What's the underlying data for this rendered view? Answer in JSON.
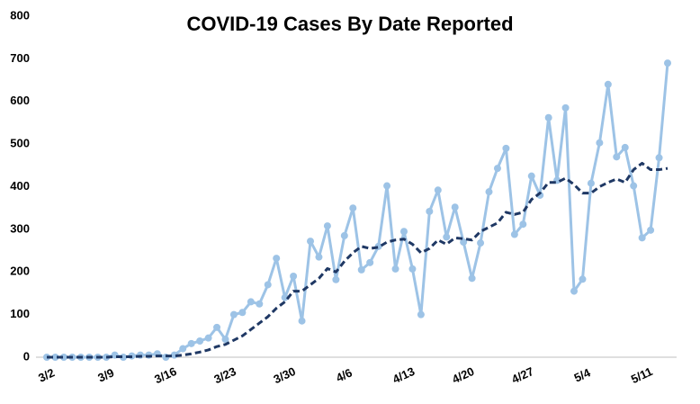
{
  "chart_data": {
    "type": "line",
    "title": "COVID-19 Cases By Date Reported",
    "categories": [
      "3/2",
      null,
      null,
      null,
      null,
      null,
      null,
      "3/9",
      null,
      null,
      null,
      null,
      null,
      null,
      "3/16",
      null,
      null,
      null,
      null,
      null,
      null,
      "3/23",
      null,
      null,
      null,
      null,
      null,
      null,
      "3/30",
      null,
      null,
      null,
      null,
      null,
      null,
      "4/6",
      null,
      null,
      null,
      null,
      null,
      null,
      "4/13",
      null,
      null,
      null,
      null,
      null,
      null,
      "4/20",
      null,
      null,
      null,
      null,
      null,
      null,
      "4/27",
      null,
      null,
      null,
      null,
      null,
      null,
      "5/4",
      null,
      null,
      null,
      null,
      null,
      null,
      "5/11",
      null,
      null,
      null
    ],
    "series": [
      {
        "color": "#9dc3e6",
        "markers": true,
        "dashed": false,
        "values": [
          0,
          0,
          0,
          0,
          0,
          0,
          0,
          0,
          5,
          0,
          3,
          5,
          5,
          8,
          0,
          5,
          20,
          32,
          38,
          45,
          70,
          42,
          100,
          105,
          130,
          125,
          170,
          232,
          140,
          190,
          85,
          272,
          235,
          308,
          182,
          285,
          350,
          205,
          222,
          260,
          402,
          207,
          295,
          207,
          100,
          342,
          392,
          282,
          352,
          270,
          185,
          268,
          388,
          443,
          490,
          288,
          312,
          425,
          380,
          562,
          415,
          585,
          155,
          183,
          408,
          503,
          640,
          470,
          492,
          402,
          280,
          298,
          468,
          690
        ]
      },
      {
        "color": "#1f3864",
        "markers": false,
        "dashed": true,
        "values": [
          0,
          0,
          0,
          0,
          0,
          0,
          0,
          0,
          1,
          1,
          1,
          2,
          2,
          3,
          3,
          3,
          5,
          8,
          12,
          17,
          25,
          30,
          40,
          50,
          65,
          80,
          95,
          115,
          130,
          155,
          155,
          170,
          185,
          208,
          200,
          225,
          245,
          260,
          255,
          258,
          270,
          275,
          277,
          265,
          245,
          255,
          275,
          265,
          280,
          278,
          275,
          295,
          305,
          315,
          340,
          335,
          340,
          370,
          385,
          410,
          410,
          420,
          405,
          385,
          385,
          400,
          410,
          418,
          410,
          440,
          455,
          440,
          440,
          443
        ]
      }
    ],
    "ylim": [
      0,
      800
    ],
    "yticks": [
      0,
      100,
      200,
      300,
      400,
      500,
      600,
      700,
      800
    ],
    "grid": false
  }
}
